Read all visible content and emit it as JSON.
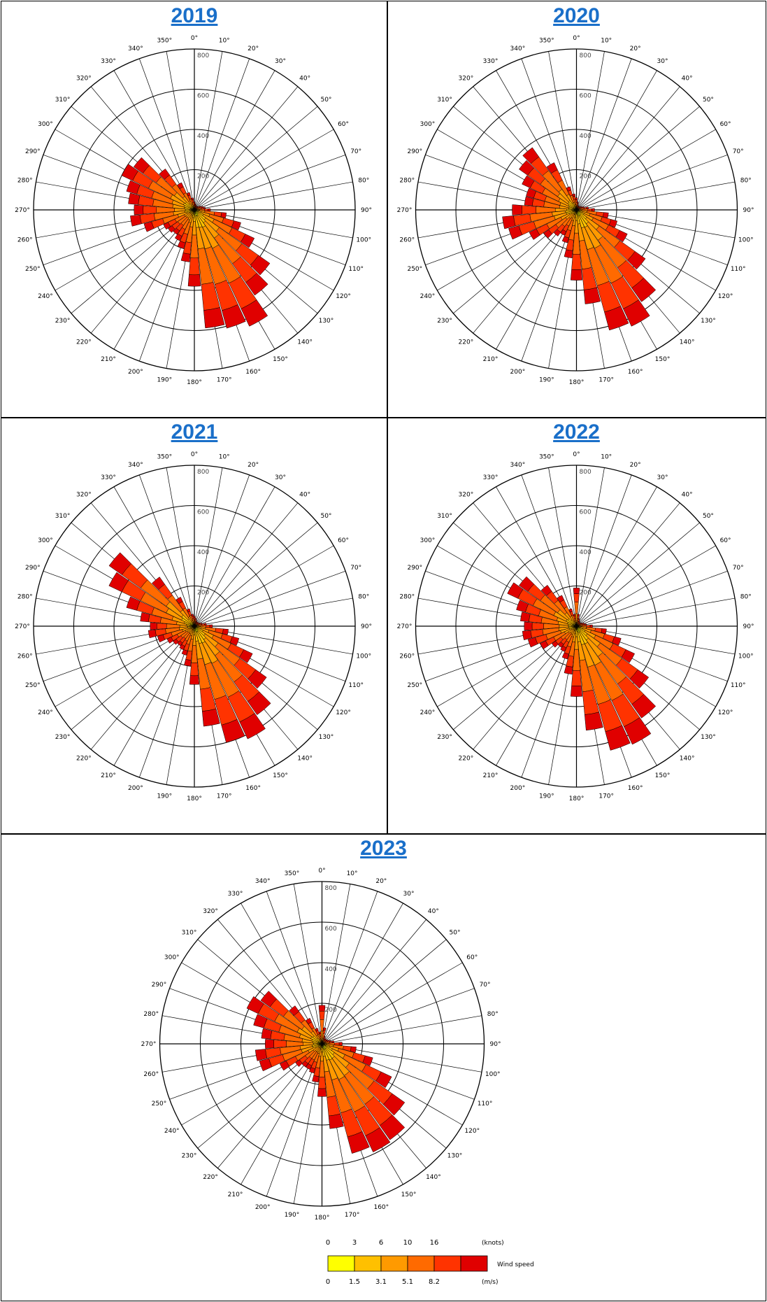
{
  "angle_labels": [
    "0°",
    "10°",
    "20°",
    "30°",
    "40°",
    "50°",
    "60°",
    "70°",
    "80°",
    "90°",
    "100°",
    "110°",
    "120°",
    "130°",
    "140°",
    "150°",
    "160°",
    "170°",
    "180°",
    "190°",
    "200°",
    "210°",
    "220°",
    "230°",
    "240°",
    "250°",
    "260°",
    "270°",
    "280°",
    "290°",
    "300°",
    "310°",
    "320°",
    "330°",
    "340°",
    "350°"
  ],
  "radial_ticks": [
    200,
    400,
    600,
    800
  ],
  "legend": {
    "knots_unit": "(knots)",
    "ms_unit": "(m/s)",
    "knots_ticks": [
      "0",
      "3",
      "6",
      "10",
      "16"
    ],
    "ms_ticks": [
      "0",
      "1.5",
      "3.1",
      "5.1",
      "8.2"
    ],
    "title": "Wind speed",
    "colors": [
      "#ffff00",
      "#ffc000",
      "#ff9a00",
      "#ff6a00",
      "#ff3300",
      "#e00000"
    ]
  },
  "chart_data": [
    {
      "type": "wind-rose",
      "title": "2019",
      "rmax": 800,
      "sector_width_deg": 10,
      "directions": [
        0,
        10,
        20,
        30,
        40,
        50,
        60,
        70,
        80,
        90,
        100,
        110,
        120,
        130,
        140,
        150,
        160,
        170,
        180,
        190,
        200,
        210,
        220,
        230,
        240,
        250,
        260,
        270,
        280,
        290,
        300,
        310,
        320,
        330,
        340,
        350
      ],
      "totals": [
        40,
        30,
        25,
        20,
        20,
        25,
        35,
        45,
        55,
        80,
        160,
        240,
        330,
        460,
        520,
        640,
        610,
        590,
        380,
        260,
        200,
        170,
        150,
        160,
        170,
        260,
        320,
        300,
        330,
        350,
        400,
        370,
        250,
        150,
        90,
        60
      ]
    },
    {
      "type": "wind-rose",
      "title": "2020",
      "rmax": 800,
      "sector_width_deg": 10,
      "directions": [
        0,
        10,
        20,
        30,
        40,
        50,
        60,
        70,
        80,
        90,
        100,
        110,
        120,
        130,
        140,
        150,
        160,
        170,
        180,
        190,
        200,
        210,
        220,
        230,
        240,
        250,
        260,
        270,
        280,
        290,
        300,
        310,
        320,
        330,
        340,
        350
      ],
      "totals": [
        60,
        40,
        25,
        20,
        20,
        25,
        30,
        40,
        60,
        90,
        160,
        210,
        280,
        420,
        560,
        640,
        620,
        470,
        350,
        240,
        170,
        140,
        160,
        200,
        260,
        350,
        370,
        320,
        260,
        260,
        300,
        350,
        380,
        260,
        120,
        80
      ]
    },
    {
      "type": "wind-rose",
      "title": "2021",
      "rmax": 800,
      "sector_width_deg": 10,
      "directions": [
        0,
        10,
        20,
        30,
        40,
        50,
        60,
        70,
        80,
        90,
        100,
        110,
        120,
        130,
        140,
        150,
        160,
        170,
        180,
        190,
        200,
        210,
        220,
        230,
        240,
        250,
        260,
        270,
        280,
        290,
        300,
        310,
        320,
        330,
        340,
        350
      ],
      "totals": [
        50,
        40,
        30,
        25,
        25,
        25,
        30,
        40,
        60,
        90,
        170,
        230,
        320,
        440,
        540,
        620,
        600,
        500,
        290,
        200,
        150,
        130,
        120,
        130,
        150,
        190,
        230,
        220,
        270,
        350,
        470,
        520,
        300,
        160,
        90,
        60
      ]
    },
    {
      "type": "wind-rose",
      "title": "2022",
      "rmax": 800,
      "sector_width_deg": 10,
      "directions": [
        0,
        10,
        20,
        30,
        40,
        50,
        60,
        70,
        80,
        90,
        100,
        110,
        120,
        130,
        140,
        150,
        160,
        170,
        180,
        190,
        200,
        210,
        220,
        230,
        240,
        250,
        260,
        270,
        280,
        290,
        300,
        310,
        320,
        330,
        340,
        350
      ],
      "totals": [
        190,
        60,
        40,
        30,
        25,
        25,
        30,
        40,
        50,
        80,
        150,
        230,
        320,
        440,
        560,
        650,
        640,
        520,
        350,
        240,
        170,
        140,
        130,
        150,
        200,
        250,
        270,
        260,
        280,
        310,
        380,
        350,
        250,
        170,
        90,
        60
      ]
    },
    {
      "type": "wind-rose",
      "title": "2023",
      "rmax": 800,
      "sector_width_deg": 10,
      "directions": [
        0,
        10,
        20,
        30,
        40,
        50,
        60,
        70,
        80,
        90,
        100,
        110,
        120,
        130,
        140,
        150,
        160,
        170,
        180,
        190,
        200,
        210,
        220,
        230,
        240,
        250,
        260,
        270,
        280,
        290,
        300,
        310,
        320,
        330,
        340,
        350
      ],
      "totals": [
        190,
        80,
        40,
        30,
        30,
        30,
        35,
        45,
        60,
        100,
        170,
        260,
        380,
        500,
        580,
        590,
        560,
        420,
        260,
        190,
        150,
        140,
        140,
        160,
        230,
        320,
        330,
        280,
        300,
        350,
        410,
        370,
        230,
        140,
        80,
        60
      ]
    }
  ]
}
